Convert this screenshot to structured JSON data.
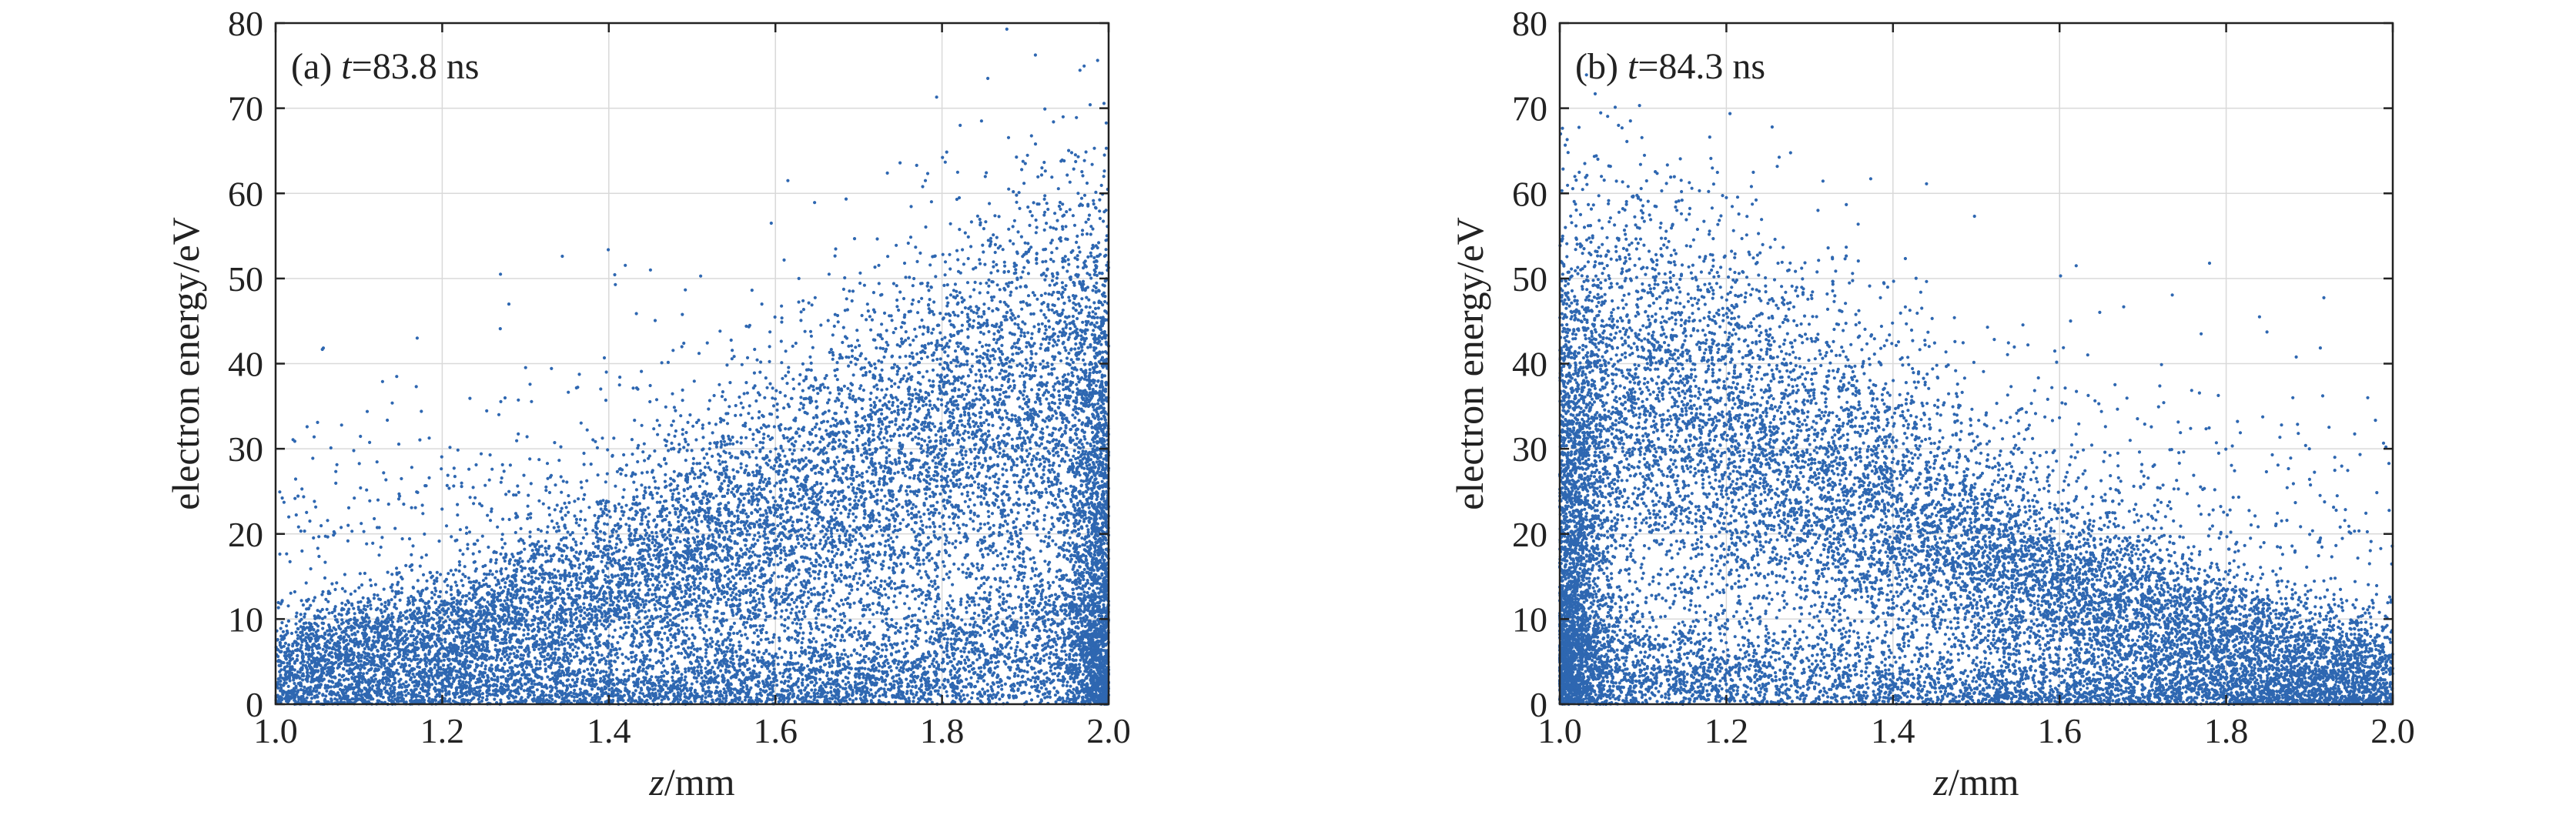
{
  "colors": {
    "points": "#2e67b1",
    "axes": "#222222",
    "grid": "#d9d9d9"
  },
  "chart_data": [
    {
      "type": "scatter",
      "title_prefix": "(a) ",
      "title_var": "t",
      "title_suffix": "=83.8 ns",
      "xlabel_var": "z",
      "xlabel_unit": "/mm",
      "ylabel": "electron energy/eV",
      "xlim": [
        1.0,
        2.0
      ],
      "ylim": [
        0,
        80
      ],
      "xticks": [
        "1.0",
        "1.2",
        "1.4",
        "1.6",
        "1.8",
        "2.0"
      ],
      "yticks": [
        "0",
        "10",
        "20",
        "30",
        "40",
        "50",
        "60",
        "70",
        "80"
      ],
      "grid": true,
      "series": [
        {
          "trend": "main electron energy band rises from about 4 eV at z = 1.0 mm to about 38 eV at z = 2.0 mm",
          "trend_points": [
            [
              1.0,
              4
            ],
            [
              1.2,
              7
            ],
            [
              1.4,
              13
            ],
            [
              1.6,
              20
            ],
            [
              1.7,
              25
            ],
            [
              1.8,
              29
            ],
            [
              1.9,
              33
            ],
            [
              2.0,
              38
            ]
          ],
          "secondary_trend_points": [
            [
              1.0,
              2
            ],
            [
              1.4,
              1.5
            ],
            [
              1.7,
              3
            ],
            [
              1.85,
              5
            ],
            [
              1.95,
              8
            ],
            [
              2.0,
              2
            ]
          ],
          "outliers": [
            [
              1.855,
              73.5
            ],
            [
              1.9,
              63.5
            ],
            [
              1.92,
              63
            ],
            [
              1.995,
              64.5
            ],
            [
              1.615,
              61.5
            ],
            [
              1.27,
              50.5
            ],
            [
              1.28,
              47
            ],
            [
              1.45,
              51
            ],
            [
              1.17,
              43
            ],
            [
              1.595,
              56.5
            ],
            [
              1.78,
              61.5
            ],
            [
              1.88,
              60.5
            ]
          ]
        }
      ]
    },
    {
      "type": "scatter",
      "title_prefix": "(b) ",
      "title_var": "t",
      "title_suffix": "=84.3 ns",
      "xlabel_var": "z",
      "xlabel_unit": "/mm",
      "ylabel": "electron energy/eV",
      "xlim": [
        1.0,
        2.0
      ],
      "ylim": [
        0,
        80
      ],
      "xticks": [
        "1.0",
        "1.2",
        "1.4",
        "1.6",
        "1.8",
        "2.0"
      ],
      "yticks": [
        "0",
        "10",
        "20",
        "30",
        "40",
        "50",
        "60",
        "70",
        "80"
      ],
      "grid": true,
      "series": [
        {
          "trend": "main electron energy band falls from about 35 eV at z = 1.0 mm to about 4 eV at z = 2.0 mm",
          "trend_points": [
            [
              1.0,
              35
            ],
            [
              1.1,
              34
            ],
            [
              1.2,
              30
            ],
            [
              1.3,
              26
            ],
            [
              1.4,
              22
            ],
            [
              1.5,
              17
            ],
            [
              1.6,
              13
            ],
            [
              1.7,
              10
            ],
            [
              1.8,
              7
            ],
            [
              1.9,
              5
            ],
            [
              2.0,
              4
            ]
          ],
          "secondary_trend_points": [
            [
              1.0,
              5
            ],
            [
              1.1,
              4
            ],
            [
              1.25,
              3
            ],
            [
              1.4,
              2
            ],
            [
              1.55,
              1.5
            ],
            [
              1.7,
              1
            ],
            [
              2.0,
              1
            ]
          ],
          "outliers": [
            [
              1.255,
              67.8
            ],
            [
              1.01,
              64.8
            ],
            [
              1.03,
              63.5
            ],
            [
              1.23,
              60.8
            ],
            [
              1.2,
              59.5
            ],
            [
              1.31,
              58
            ],
            [
              1.025,
              57.5
            ],
            [
              1.08,
              58.7
            ],
            [
              1.78,
              51.8
            ],
            [
              1.62,
              51.5
            ],
            [
              1.84,
              45.5
            ],
            [
              1.77,
              43.5
            ],
            [
              1.88,
              36
            ],
            [
              1.97,
              36
            ]
          ]
        }
      ]
    }
  ]
}
